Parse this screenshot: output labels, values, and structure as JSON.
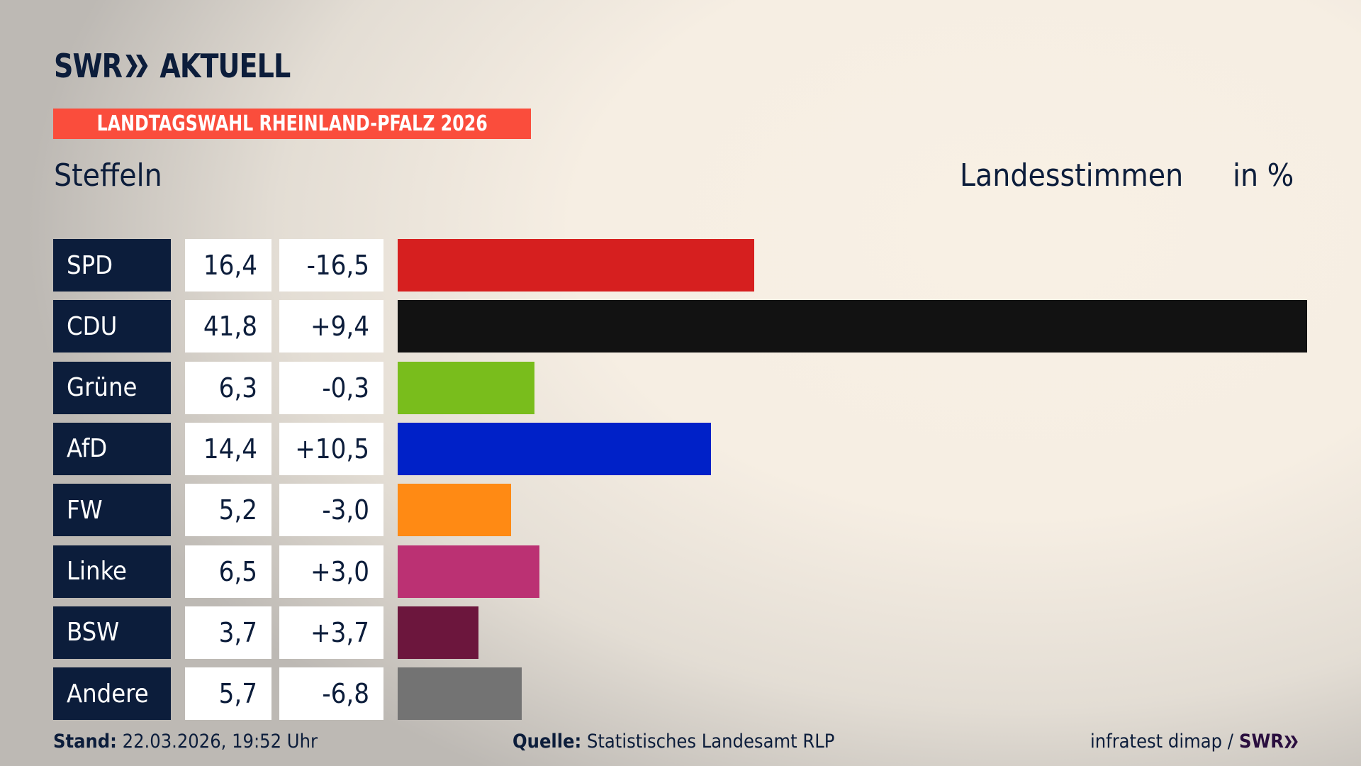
{
  "header": {
    "logo_text": "SWR AKTUELL",
    "banner": "LANDTAGSWAHL RHEINLAND-PFALZ 2026",
    "place": "Steffeln",
    "metric": "Landesstimmen",
    "unit": "in %"
  },
  "colors": {
    "navy": "#0c1d3b",
    "banner": "#fa4d3c"
  },
  "chart_data": {
    "type": "bar",
    "orientation": "horizontal",
    "categories": [
      "SPD",
      "CDU",
      "Grüne",
      "AfD",
      "FW",
      "Linke",
      "BSW",
      "Andere"
    ],
    "values": [
      16.4,
      41.8,
      6.3,
      14.4,
      5.2,
      6.5,
      3.7,
      5.7
    ],
    "labels": [
      "16,4",
      "41,8",
      "6,3",
      "14,4",
      "5,2",
      "6,5",
      "3,7",
      "5,7"
    ],
    "changes": [
      "-16,5",
      "+9,4",
      "-0,3",
      "+10,5",
      "-3,0",
      "+3,0",
      "+3,7",
      "-6,8"
    ],
    "colors": [
      "#d61f1f",
      "#121212",
      "#79bd1c",
      "#0021c8",
      "#ff8a14",
      "#bb3173",
      "#6c163d",
      "#737373"
    ],
    "xlim": [
      0,
      41.8
    ],
    "grid": false
  },
  "footer": {
    "stand_label": "Stand:",
    "stand_value": "22.03.2026, 19:52 Uhr",
    "source_label": "Quelle:",
    "source_value": "Statistisches Landesamt RLP",
    "credit": "infratest dimap /",
    "credit_logo": "SWR"
  }
}
